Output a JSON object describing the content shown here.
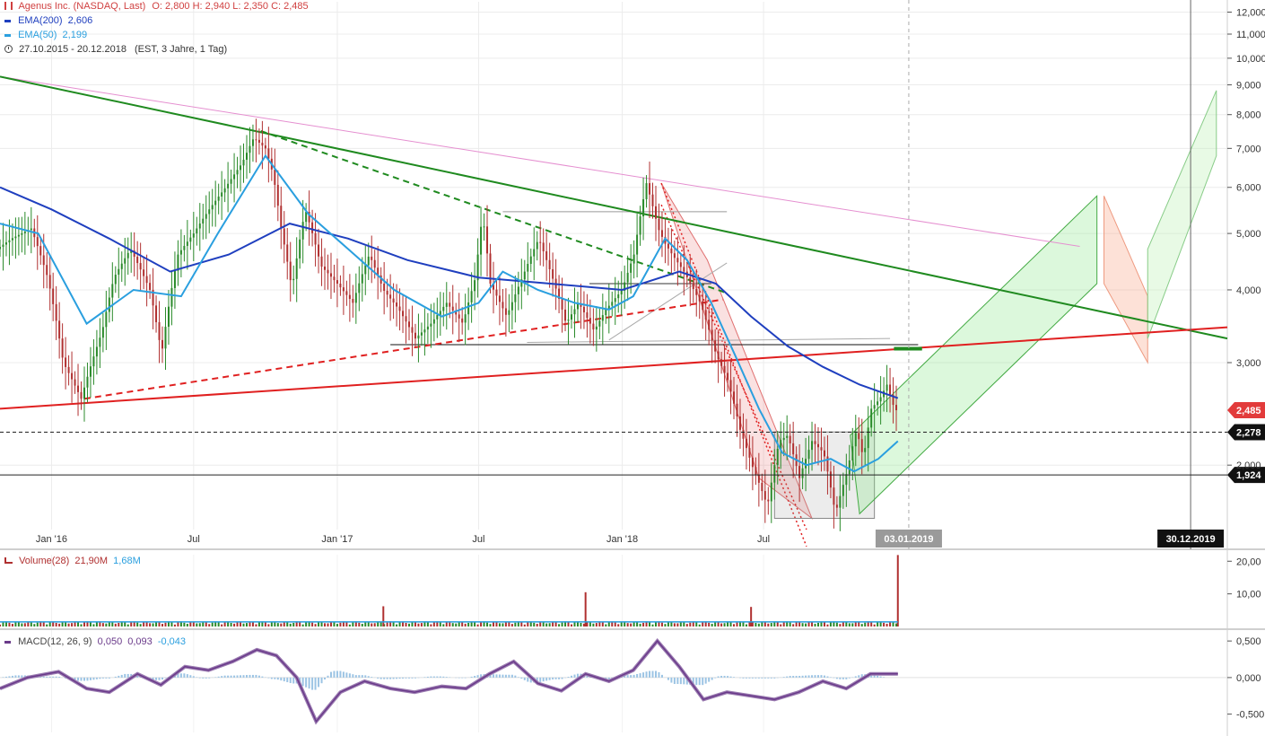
{
  "legend": {
    "title": "Agenus Inc. (NASDAQ, Last)",
    "ohlc": "O: 2,800   H: 2,940   L: 2,350   C: 2,485",
    "ema200_label": "EMA(200)",
    "ema200_value": "2,606",
    "ema50_label": "EMA(50)",
    "ema50_value": "2,199",
    "range": "27.10.2015 - 20.12.2018",
    "range_info": "(EST, 3 Jahre, 1 Tag)",
    "volume_label": "Volume(28)",
    "volume_v1": "21,90M",
    "volume_v2": "1,68M",
    "macd_label": "MACD(12, 26, 9)",
    "macd_v1": "0,050",
    "macd_v2": "0,093",
    "macd_v3": "-0,043"
  },
  "colors": {
    "ema200": "#1f3fbf",
    "ema50": "#2a9fdf",
    "up": "#2a8a2a",
    "down": "#b03030",
    "resistance": "#1f8a1f",
    "support": "#e02020",
    "pink": "#e58fd0",
    "macd": "#6a3a8a"
  },
  "chart_data": [
    {
      "type": "line",
      "title": "Agenus Inc. (NASDAQ, Last)",
      "y_scale": "log",
      "ylim": [
        1.55,
        12.5
      ],
      "y_ticks": [
        "12,000",
        "11,000",
        "10,000",
        "9,000",
        "8,000",
        "7,000",
        "6,000",
        "5,000",
        "4,000",
        "3,000",
        "2,000"
      ],
      "y_tick_values": [
        12,
        11,
        10,
        9,
        8,
        7,
        6,
        5,
        4,
        3,
        2
      ],
      "x_ticks": [
        "Jan '16",
        "Jul",
        "Jan '17",
        "Jul",
        "Jan '18",
        "Jul"
      ],
      "x_tick_dates": [
        "2016-01-01",
        "2016-07-01",
        "2017-01-01",
        "2017-07-01",
        "2018-01-01",
        "2018-07-01"
      ],
      "x_range": [
        "2015-10-27",
        "2020-02-15"
      ],
      "markers": [
        {
          "label": "03.01.2019",
          "date": "2019-01-03"
        },
        {
          "label": "30.12.2019",
          "date": "2019-12-30"
        }
      ],
      "price_tags": [
        {
          "label": "2,485",
          "value": 2.485,
          "style": "last"
        },
        {
          "label": "2,278",
          "value": 2.278,
          "style": "dashed"
        },
        {
          "label": "1,924",
          "value": 1.924,
          "style": "solid"
        }
      ],
      "series": [
        {
          "name": "Agenus Inc.",
          "dates": [
            "2015-10-27",
            "2015-11-15",
            "2015-12-10",
            "2015-12-31",
            "2016-01-20",
            "2016-02-12",
            "2016-03-10",
            "2016-03-25",
            "2016-04-15",
            "2016-05-10",
            "2016-05-25",
            "2016-06-15",
            "2016-07-05",
            "2016-07-25",
            "2016-08-15",
            "2016-09-05",
            "2016-09-20",
            "2016-10-05",
            "2016-10-15",
            "2016-10-25",
            "2016-11-08",
            "2016-11-25",
            "2016-12-15",
            "2017-01-05",
            "2017-01-25",
            "2017-02-15",
            "2017-03-05",
            "2017-03-25",
            "2017-04-15",
            "2017-05-05",
            "2017-05-25",
            "2017-06-15",
            "2017-07-01",
            "2017-07-10",
            "2017-07-20",
            "2017-08-10",
            "2017-08-30",
            "2017-09-20",
            "2017-10-10",
            "2017-10-25",
            "2017-11-10",
            "2017-11-30",
            "2017-12-15",
            "2018-01-05",
            "2018-01-20",
            "2018-02-05",
            "2018-02-20",
            "2018-03-01",
            "2018-03-10",
            "2018-03-25",
            "2018-04-15",
            "2018-05-05",
            "2018-05-20",
            "2018-06-05",
            "2018-06-20",
            "2018-07-10",
            "2018-07-25",
            "2018-08-05",
            "2018-08-20",
            "2018-09-05",
            "2018-09-20",
            "2018-10-05",
            "2018-10-20",
            "2018-11-01",
            "2018-11-10",
            "2018-11-20",
            "2018-12-01",
            "2018-12-10",
            "2018-12-20"
          ],
          "values": [
            4.7,
            4.9,
            5.1,
            4.2,
            3.0,
            2.6,
            3.4,
            4.2,
            4.7,
            4.0,
            3.1,
            4.6,
            5.0,
            5.5,
            6.0,
            6.6,
            7.3,
            7.0,
            6.3,
            5.1,
            4.0,
            5.5,
            4.4,
            4.1,
            3.8,
            4.6,
            4.0,
            3.7,
            3.3,
            3.5,
            3.8,
            3.5,
            4.2,
            5.4,
            4.1,
            3.6,
            4.2,
            4.9,
            4.1,
            3.5,
            3.8,
            3.4,
            3.7,
            4.0,
            4.6,
            6.1,
            5.1,
            4.8,
            4.6,
            4.3,
            3.8,
            3.1,
            2.8,
            2.3,
            2.0,
            1.7,
            2.2,
            2.25,
            1.9,
            2.2,
            2.1,
            1.65,
            1.95,
            2.3,
            2.05,
            2.5,
            2.6,
            2.75,
            2.485
          ]
        },
        {
          "name": "EMA(200)",
          "dates": [
            "2015-10-27",
            "2016-01-01",
            "2016-03-15",
            "2016-06-01",
            "2016-08-15",
            "2016-11-01",
            "2017-01-15",
            "2017-04-01",
            "2017-07-01",
            "2017-10-01",
            "2018-01-01",
            "2018-03-15",
            "2018-05-01",
            "2018-06-15",
            "2018-08-01",
            "2018-09-15",
            "2018-11-01",
            "2018-12-20"
          ],
          "values": [
            6.0,
            5.5,
            4.9,
            4.3,
            4.6,
            5.2,
            4.9,
            4.5,
            4.2,
            4.1,
            4.0,
            4.3,
            4.1,
            3.6,
            3.2,
            2.95,
            2.75,
            2.606
          ]
        },
        {
          "name": "EMA(50)",
          "dates": [
            "2015-10-27",
            "2015-12-15",
            "2016-02-15",
            "2016-04-15",
            "2016-06-15",
            "2016-08-01",
            "2016-10-01",
            "2016-11-25",
            "2017-01-15",
            "2017-03-15",
            "2017-05-15",
            "2017-07-01",
            "2017-08-01",
            "2017-09-15",
            "2017-11-01",
            "2017-12-15",
            "2018-01-15",
            "2018-02-25",
            "2018-03-25",
            "2018-04-25",
            "2018-05-25",
            "2018-06-25",
            "2018-07-25",
            "2018-08-25",
            "2018-09-25",
            "2018-10-25",
            "2018-11-25",
            "2018-12-20"
          ],
          "values": [
            5.2,
            5.0,
            3.5,
            4.0,
            3.9,
            5.0,
            6.8,
            5.4,
            4.7,
            4.0,
            3.6,
            3.8,
            4.3,
            4.0,
            3.8,
            3.7,
            3.9,
            4.9,
            4.5,
            3.8,
            3.1,
            2.5,
            2.1,
            2.0,
            2.05,
            1.95,
            2.05,
            2.199
          ]
        }
      ],
      "annotations": {
        "resistance_line": {
          "label": "",
          "points": [
            [
              "2015-10-27",
              9.3
            ],
            [
              "2020-02-15",
              3.3
            ]
          ]
        },
        "support_line": {
          "label": "",
          "points": [
            [
              "2015-10-27",
              2.5
            ],
            [
              "2020-02-15",
              3.45
            ]
          ]
        },
        "pink_line": {
          "label": "",
          "points": [
            [
              "2015-10-27",
              9.3
            ],
            [
              "2019-08-10",
              4.75
            ]
          ]
        }
      }
    },
    {
      "type": "bar",
      "title": "Volume(28)",
      "y_ticks": [
        "20,00",
        "10,00"
      ],
      "y_tick_values": [
        20,
        10
      ],
      "ylim": [
        0,
        22
      ],
      "spikes": [
        {
          "date": "2018-12-20",
          "value": 21.9
        },
        {
          "date": "2017-11-15",
          "value": 10.5
        },
        {
          "date": "2017-03-01",
          "value": 6.2
        },
        {
          "date": "2018-06-15",
          "value": 6.0
        }
      ],
      "baseline_volume": 1.2
    },
    {
      "type": "line",
      "title": "MACD(12, 26, 9)",
      "y_ticks": [
        "0,500",
        "0,000",
        "-0,500"
      ],
      "y_tick_values": [
        0.5,
        0,
        -0.5
      ],
      "ylim": [
        -0.75,
        0.6
      ],
      "series": [
        {
          "name": "MACD",
          "dates": [
            "2015-10-27",
            "2015-12-01",
            "2016-01-10",
            "2016-02-15",
            "2016-03-15",
            "2016-04-20",
            "2016-05-20",
            "2016-06-20",
            "2016-07-20",
            "2016-08-20",
            "2016-09-20",
            "2016-10-15",
            "2016-11-10",
            "2016-12-05",
            "2017-01-05",
            "2017-02-05",
            "2017-03-10",
            "2017-04-10",
            "2017-05-15",
            "2017-06-15",
            "2017-07-15",
            "2017-08-15",
            "2017-09-15",
            "2017-10-15",
            "2017-11-15",
            "2017-12-15",
            "2018-01-15",
            "2018-02-15",
            "2018-03-15",
            "2018-04-15",
            "2018-05-15",
            "2018-06-15",
            "2018-07-15",
            "2018-08-15",
            "2018-09-15",
            "2018-10-15",
            "2018-11-15",
            "2018-12-20"
          ],
          "values": [
            -0.15,
            0.0,
            0.08,
            -0.15,
            -0.2,
            0.05,
            -0.1,
            0.15,
            0.1,
            0.22,
            0.38,
            0.3,
            0.0,
            -0.6,
            -0.2,
            -0.05,
            -0.15,
            -0.2,
            -0.12,
            -0.15,
            0.05,
            0.22,
            -0.08,
            -0.18,
            0.05,
            -0.05,
            0.1,
            0.5,
            0.15,
            -0.3,
            -0.2,
            -0.25,
            -0.3,
            -0.2,
            -0.05,
            -0.15,
            0.05,
            0.05
          ]
        }
      ]
    }
  ]
}
